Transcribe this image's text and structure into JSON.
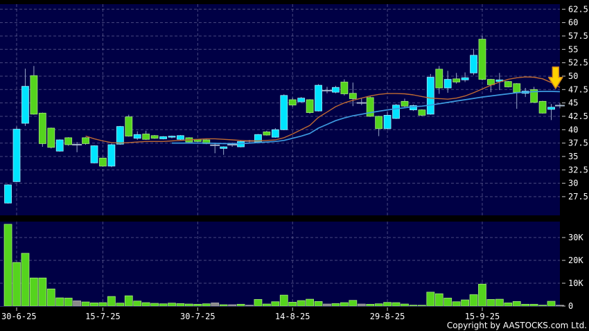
{
  "meta": {
    "copyright": "Copyright by AASTOCKS.com Ltd."
  },
  "colors": {
    "background": "#000000",
    "panel_bg": "#000045",
    "grid": "#8585B0",
    "up_candle": "#00E4FF",
    "up_candle_edge": "#9EEBFF",
    "down_candle": "#55D41E",
    "down_candle_edge": "#A6E97A",
    "doji_gray": "#A8B8CC",
    "wick": "#9AA9C9",
    "ma_fast": "#C06A32",
    "ma_slow": "#3D9BE0",
    "arrow_fill": "#FFD200",
    "arrow_edge": "#D4881C",
    "axis_text": "#FFFFFF",
    "volume_bar": "#55D41E",
    "volume_bar_edge": "#A6E97A"
  },
  "chart_data": {
    "type": "candlestick-with-volume",
    "title": "",
    "y_axis": {
      "min": 27.5,
      "max": 62.5,
      "step": 2.5,
      "labels": [
        "62.5",
        "60",
        "57.5",
        "55",
        "52.5",
        "50",
        "47.5",
        "45",
        "42.5",
        "40",
        "37.5",
        "35",
        "32.5",
        "30",
        "27.5"
      ]
    },
    "volume_axis": {
      "labels": [
        [
          "30K",
          30
        ],
        [
          "20K",
          20
        ],
        [
          "10K",
          10
        ],
        [
          "0",
          0
        ]
      ],
      "unit": "K shares"
    },
    "x_axis": {
      "ticks": [
        {
          "label": "30-6-25",
          "bar": 2
        },
        {
          "label": "15-7-25",
          "bar": 12
        },
        {
          "label": "30-7-25",
          "bar": 23
        },
        {
          "label": "14-8-25",
          "bar": 34
        },
        {
          "label": "29-8-25",
          "bar": 45
        },
        {
          "label": "15-9-25",
          "bar": 56
        }
      ]
    },
    "candles_format": [
      "open",
      "high",
      "low",
      "close",
      "volume_K",
      "direction(u=up-cyan,d=down-green,g=gray-doji)"
    ],
    "candles": [
      [
        26.3,
        29.8,
        26.2,
        29.7,
        35.8,
        "u"
      ],
      [
        30.3,
        40.6,
        30.2,
        40.1,
        19.1,
        "u"
      ],
      [
        41.2,
        51.4,
        40.7,
        48.1,
        23.1,
        "u"
      ],
      [
        50.1,
        51.9,
        42.8,
        42.9,
        12.3,
        "d"
      ],
      [
        43.1,
        43.2,
        36.8,
        37.4,
        12.3,
        "d"
      ],
      [
        40.3,
        40.4,
        36.5,
        36.7,
        7.5,
        "d"
      ],
      [
        36.0,
        38.2,
        35.9,
        38.1,
        3.6,
        "u"
      ],
      [
        38.5,
        38.6,
        37.0,
        37.2,
        3.5,
        "d"
      ],
      [
        37.1,
        37.7,
        35.8,
        37.2,
        2.3,
        "g"
      ],
      [
        38.5,
        38.6,
        37.2,
        37.4,
        1.8,
        "d"
      ],
      [
        33.8,
        37.1,
        33.7,
        37.0,
        1.4,
        "u"
      ],
      [
        34.7,
        34.8,
        33.1,
        33.2,
        1.5,
        "d"
      ],
      [
        33.2,
        37.4,
        33.0,
        37.2,
        4.2,
        "u"
      ],
      [
        37.3,
        40.7,
        37.2,
        40.6,
        1.3,
        "u"
      ],
      [
        42.4,
        42.8,
        38.7,
        38.8,
        4.5,
        "d"
      ],
      [
        38.4,
        39.7,
        38.1,
        39.1,
        2.2,
        "u"
      ],
      [
        39.2,
        39.8,
        38.1,
        38.2,
        1.5,
        "d"
      ],
      [
        38.9,
        39.0,
        38.3,
        38.4,
        1.2,
        "d"
      ],
      [
        38.3,
        38.8,
        38.2,
        38.7,
        1.0,
        "u"
      ],
      [
        38.6,
        38.9,
        38.4,
        38.8,
        1.3,
        "u"
      ],
      [
        38.2,
        39.0,
        38.1,
        38.9,
        1.1,
        "u"
      ],
      [
        38.5,
        38.6,
        37.6,
        37.7,
        0.9,
        "d"
      ],
      [
        38.2,
        38.3,
        37.7,
        37.8,
        0.8,
        "d"
      ],
      [
        38.1,
        38.2,
        37.3,
        37.4,
        1.0,
        "d"
      ],
      [
        37.3,
        37.5,
        35.6,
        37.1,
        1.4,
        "g"
      ],
      [
        36.5,
        36.9,
        35.3,
        36.8,
        0.6,
        "u"
      ],
      [
        37.1,
        37.6,
        36.8,
        37.2,
        0.6,
        "g"
      ],
      [
        36.8,
        37.9,
        36.7,
        37.8,
        0.8,
        "u"
      ],
      [
        37.8,
        38.1,
        37.6,
        37.9,
        0.4,
        "g"
      ],
      [
        37.7,
        39.2,
        37.6,
        39.1,
        2.9,
        "u"
      ],
      [
        39.6,
        39.8,
        38.9,
        39.0,
        0.9,
        "d"
      ],
      [
        38.6,
        40.3,
        38.5,
        40.0,
        1.9,
        "u"
      ],
      [
        40.0,
        46.6,
        39.9,
        46.4,
        4.8,
        "u"
      ],
      [
        45.6,
        46.0,
        44.3,
        44.6,
        1.7,
        "d"
      ],
      [
        45.2,
        46.1,
        45.1,
        45.9,
        2.4,
        "u"
      ],
      [
        45.6,
        45.7,
        43.0,
        43.2,
        3.0,
        "d"
      ],
      [
        43.5,
        48.5,
        43.4,
        48.3,
        2.0,
        "u"
      ],
      [
        47.5,
        48.0,
        46.8,
        47.3,
        0.9,
        "g"
      ],
      [
        47.0,
        48.2,
        46.8,
        47.9,
        1.1,
        "u"
      ],
      [
        48.9,
        49.4,
        46.4,
        46.7,
        1.5,
        "d"
      ],
      [
        46.8,
        48.8,
        44.4,
        45.8,
        2.5,
        "d"
      ],
      [
        45.2,
        45.9,
        44.6,
        45.0,
        0.9,
        "g"
      ],
      [
        46.0,
        46.2,
        42.4,
        42.5,
        0.8,
        "d"
      ],
      [
        42.5,
        42.6,
        38.8,
        40.2,
        1.0,
        "d"
      ],
      [
        40.2,
        43.3,
        40.0,
        42.7,
        1.6,
        "u"
      ],
      [
        42.1,
        44.8,
        42.0,
        44.6,
        1.5,
        "u"
      ],
      [
        45.3,
        45.8,
        44.2,
        44.4,
        0.9,
        "d"
      ],
      [
        43.7,
        44.7,
        43.5,
        44.5,
        0.4,
        "u"
      ],
      [
        43.7,
        43.8,
        42.5,
        42.7,
        0.2,
        "d"
      ],
      [
        42.9,
        50.4,
        42.8,
        49.8,
        6.1,
        "u"
      ],
      [
        51.3,
        51.9,
        46.7,
        47.8,
        5.4,
        "d"
      ],
      [
        47.8,
        51.0,
        46.9,
        49.4,
        3.5,
        "u"
      ],
      [
        49.5,
        50.6,
        48.6,
        48.9,
        1.9,
        "d"
      ],
      [
        49.3,
        50.7,
        48.9,
        49.7,
        2.7,
        "u"
      ],
      [
        50.6,
        55.1,
        50.2,
        53.9,
        5.0,
        "u"
      ],
      [
        56.9,
        57.5,
        49.2,
        49.4,
        9.6,
        "d"
      ],
      [
        49.4,
        49.5,
        47.0,
        48.4,
        2.9,
        "d"
      ],
      [
        49.0,
        50.6,
        47.4,
        49.3,
        3.0,
        "u"
      ],
      [
        49.0,
        49.1,
        47.9,
        48.0,
        1.4,
        "d"
      ],
      [
        48.6,
        48.7,
        43.9,
        47.0,
        2.0,
        "d"
      ],
      [
        46.8,
        47.8,
        46.1,
        47.2,
        0.8,
        "u"
      ],
      [
        47.5,
        48.0,
        45.0,
        45.1,
        0.8,
        "d"
      ],
      [
        45.3,
        45.4,
        43.0,
        43.1,
        0.4,
        "d"
      ],
      [
        43.8,
        44.8,
        41.8,
        44.2,
        2.1,
        "u"
      ],
      [
        44.4,
        45.0,
        44.0,
        44.5,
        0.1,
        "g"
      ]
    ],
    "ma_fast_points": [
      [
        10,
        38.8
      ],
      [
        11,
        38.3
      ],
      [
        12,
        37.9
      ],
      [
        13,
        37.6
      ],
      [
        14,
        37.5
      ],
      [
        15,
        37.6
      ],
      [
        16,
        37.7
      ],
      [
        17,
        37.8
      ],
      [
        18,
        37.8
      ],
      [
        19,
        37.8
      ],
      [
        20,
        37.9
      ],
      [
        21,
        38.0
      ],
      [
        22,
        38.1
      ],
      [
        23,
        38.2
      ],
      [
        24,
        38.3
      ],
      [
        25,
        38.3
      ],
      [
        26,
        38.2
      ],
      [
        27,
        38.1
      ],
      [
        28,
        38.0
      ],
      [
        29,
        37.9
      ],
      [
        30,
        37.9
      ],
      [
        31,
        38.0
      ],
      [
        32,
        38.1
      ],
      [
        33,
        38.5
      ],
      [
        34,
        39.2
      ],
      [
        35,
        40.0
      ],
      [
        36,
        40.8
      ],
      [
        37,
        42.3
      ],
      [
        38,
        43.3
      ],
      [
        39,
        44.3
      ],
      [
        40,
        45.0
      ],
      [
        41,
        45.5
      ],
      [
        42,
        45.9
      ],
      [
        43,
        46.3
      ],
      [
        44,
        46.6
      ],
      [
        45,
        46.75
      ],
      [
        46,
        46.75
      ],
      [
        47,
        46.7
      ],
      [
        48,
        46.5
      ],
      [
        49,
        46.2
      ],
      [
        50,
        45.9
      ],
      [
        51,
        45.8
      ],
      [
        52,
        45.7
      ],
      [
        53,
        45.9
      ],
      [
        54,
        46.3
      ],
      [
        55,
        46.9
      ],
      [
        56,
        47.6
      ],
      [
        57,
        48.3
      ],
      [
        58,
        48.9
      ],
      [
        59,
        49.4
      ],
      [
        60,
        49.7
      ],
      [
        61,
        49.85
      ],
      [
        62,
        49.8
      ],
      [
        63,
        49.5
      ],
      [
        64,
        48.8
      ],
      [
        65,
        47.9
      ]
    ],
    "ma_slow_points": [
      [
        20,
        37.5
      ],
      [
        22,
        37.5
      ],
      [
        24,
        37.5
      ],
      [
        26,
        37.4
      ],
      [
        28,
        37.4
      ],
      [
        30,
        37.6
      ],
      [
        32,
        37.8
      ],
      [
        33,
        38.0
      ],
      [
        34,
        38.4
      ],
      [
        35,
        38.8
      ],
      [
        36,
        39.3
      ],
      [
        37,
        40.3
      ],
      [
        38,
        41.0
      ],
      [
        39,
        41.7
      ],
      [
        40,
        42.2
      ],
      [
        41,
        42.6
      ],
      [
        42,
        42.9
      ],
      [
        43,
        43.2
      ],
      [
        44,
        43.45
      ],
      [
        45,
        43.7
      ],
      [
        46,
        43.9
      ],
      [
        47,
        44.1
      ],
      [
        48,
        44.3
      ],
      [
        49,
        44.4
      ],
      [
        50,
        44.6
      ],
      [
        51,
        44.85
      ],
      [
        52,
        45.1
      ],
      [
        53,
        45.35
      ],
      [
        54,
        45.6
      ],
      [
        55,
        45.85
      ],
      [
        56,
        46.1
      ],
      [
        57,
        46.3
      ],
      [
        58,
        46.5
      ],
      [
        59,
        46.7
      ],
      [
        60,
        46.9
      ],
      [
        61,
        47.0
      ],
      [
        62,
        47.1
      ],
      [
        63,
        47.15
      ],
      [
        64,
        47.15
      ],
      [
        65,
        47.1
      ]
    ],
    "annotation_arrow": {
      "shape": "down-arrow",
      "bar": 64.5,
      "price_top": 51.7,
      "price_tip": 47.7
    }
  }
}
